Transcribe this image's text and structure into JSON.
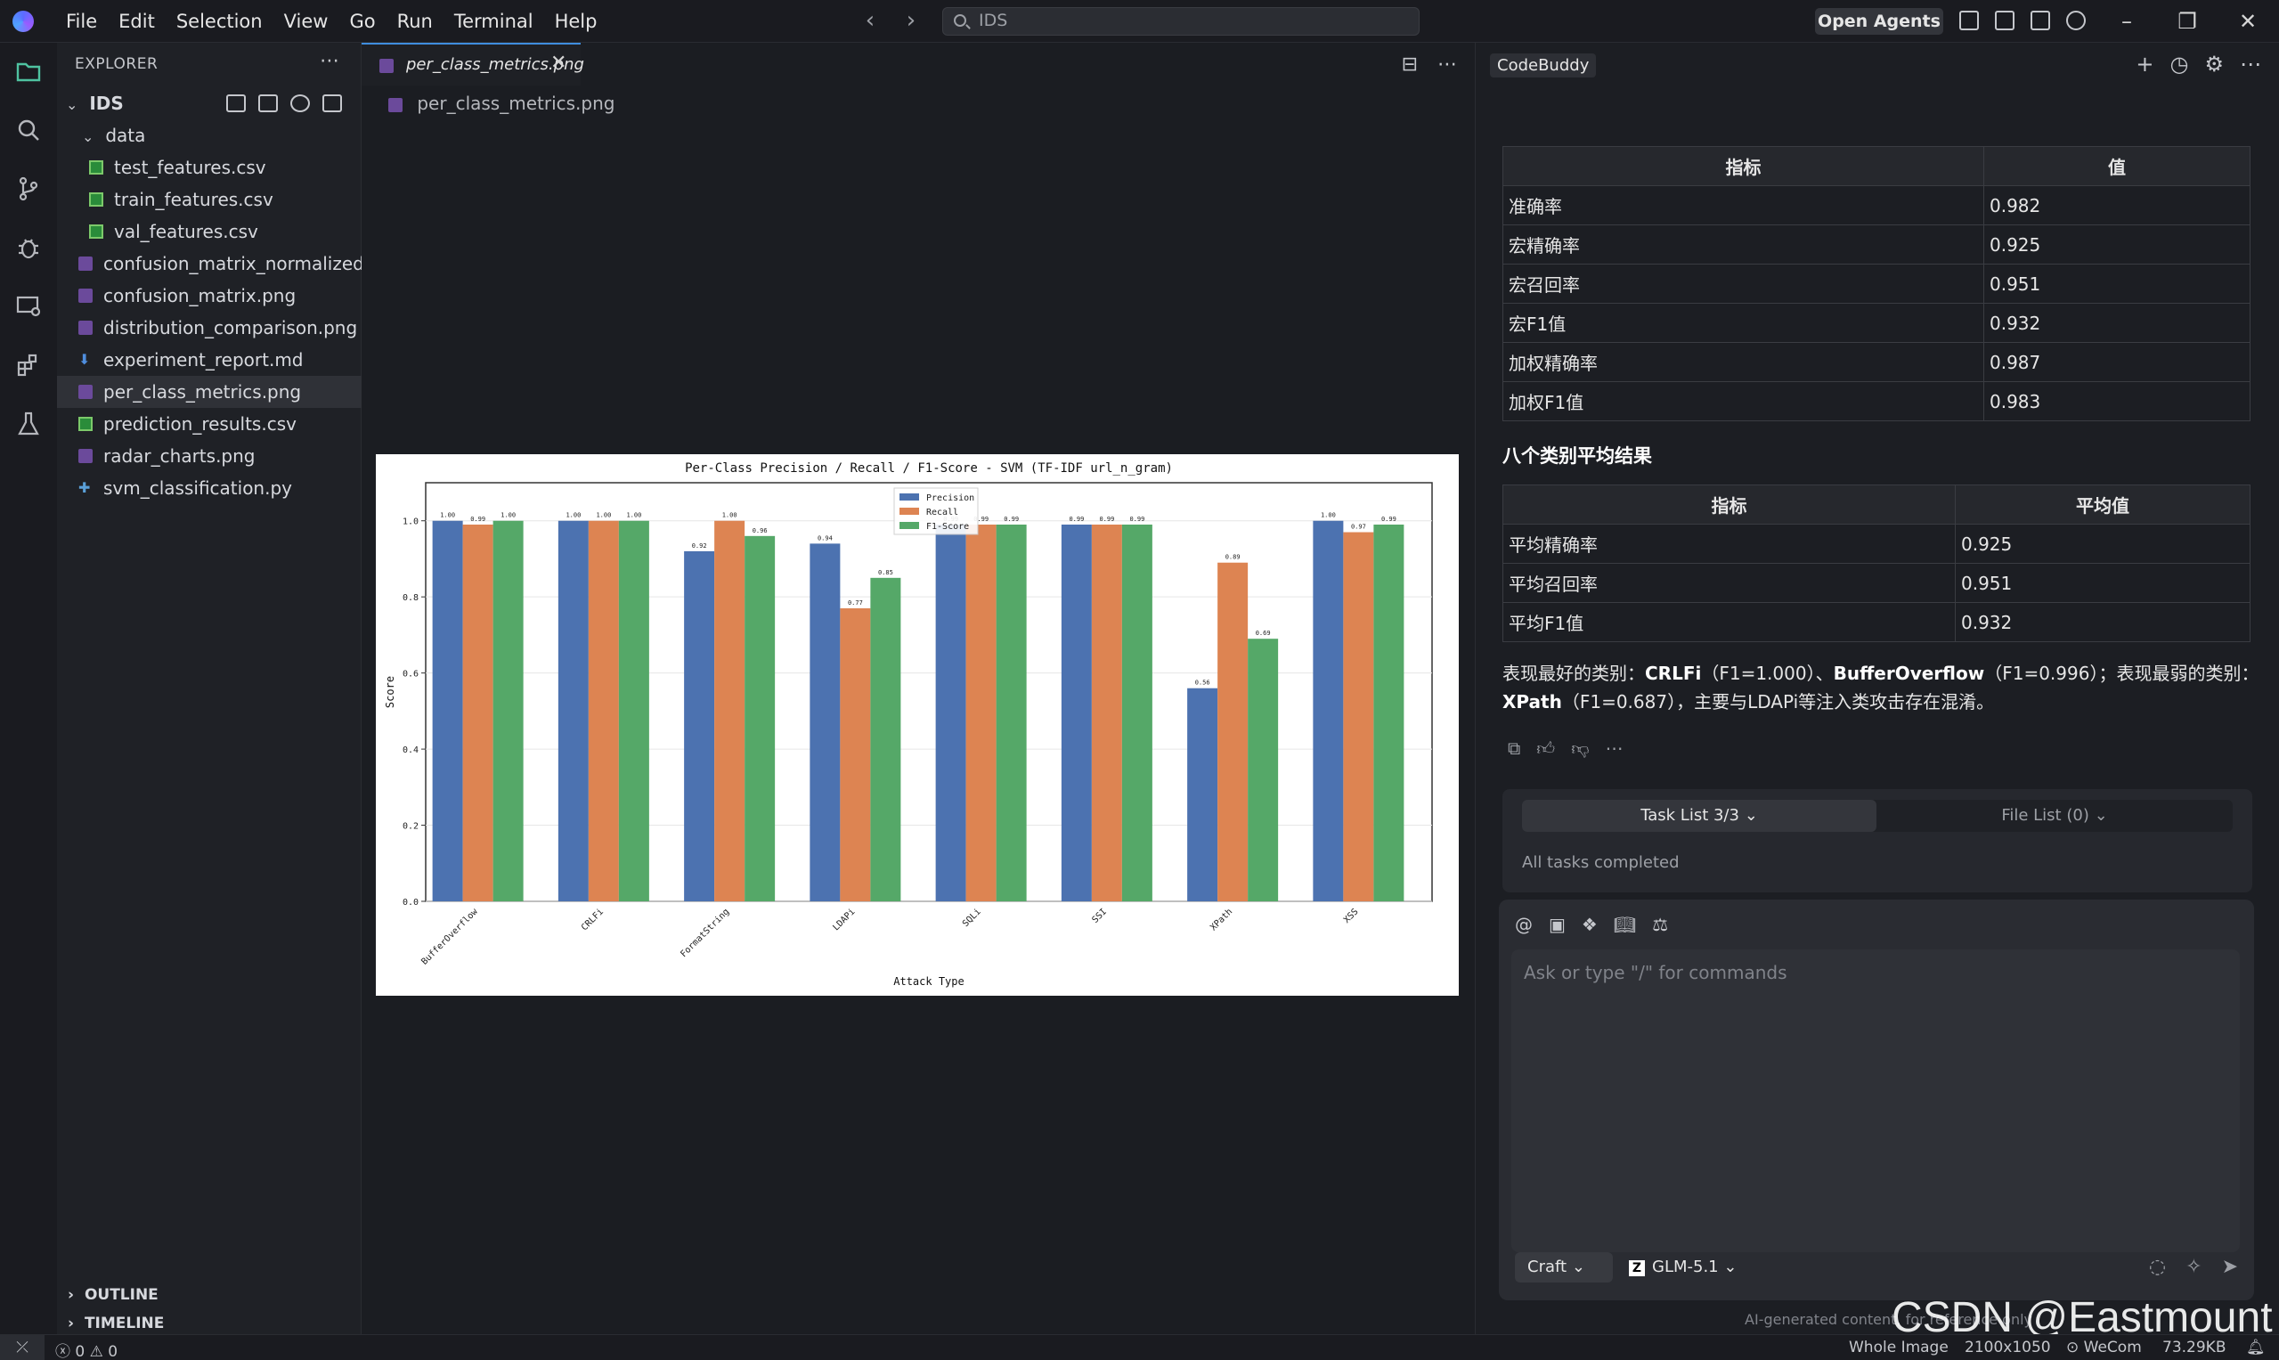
{
  "menu": [
    "File",
    "Edit",
    "Selection",
    "View",
    "Go",
    "Run",
    "Terminal",
    "Help"
  ],
  "search": {
    "value": "IDS"
  },
  "titlebar": {
    "open_agents": "Open Agents"
  },
  "explorer": {
    "title": "EXPLORER",
    "root": "IDS",
    "folder": "data",
    "files": [
      {
        "name": "test_features.csv",
        "type": "csv",
        "indent": 2
      },
      {
        "name": "train_features.csv",
        "type": "csv",
        "indent": 2
      },
      {
        "name": "val_features.csv",
        "type": "csv",
        "indent": 2
      },
      {
        "name": "confusion_matrix_normalized.png",
        "type": "png",
        "indent": 1
      },
      {
        "name": "confusion_matrix.png",
        "type": "png",
        "indent": 1
      },
      {
        "name": "distribution_comparison.png",
        "type": "png",
        "indent": 1
      },
      {
        "name": "experiment_report.md",
        "type": "md",
        "indent": 1
      },
      {
        "name": "per_class_metrics.png",
        "type": "png",
        "indent": 1,
        "selected": true
      },
      {
        "name": "prediction_results.csv",
        "type": "csv",
        "indent": 1
      },
      {
        "name": "radar_charts.png",
        "type": "png",
        "indent": 1
      },
      {
        "name": "svm_classification.py",
        "type": "py",
        "indent": 1
      }
    ],
    "outline": "OUTLINE",
    "timeline": "TIMELINE"
  },
  "editor": {
    "tab_label": "per_class_metrics.png",
    "breadcrumb": "per_class_metrics.png"
  },
  "chart_data": {
    "type": "bar",
    "title": "Per-Class Precision / Recall / F1-Score - SVM (TF-IDF url_n_gram)",
    "xlabel": "Attack Type",
    "ylabel": "Score",
    "ylim": [
      0,
      1.1
    ],
    "yticks": [
      "0.0",
      "0.2",
      "0.4",
      "0.6",
      "0.8",
      "1.0"
    ],
    "categories": [
      "BufferOverflow",
      "CRLFi",
      "FormatString",
      "LDAPi",
      "SQLi",
      "SSI",
      "XPath",
      "XSS"
    ],
    "series": [
      {
        "name": "Precision",
        "color": "#4c72b0",
        "values": [
          1.0,
          1.0,
          0.92,
          0.94,
          0.99,
          0.99,
          0.56,
          1.0
        ]
      },
      {
        "name": "Recall",
        "color": "#dd8452",
        "values": [
          0.99,
          1.0,
          1.0,
          0.77,
          0.99,
          0.99,
          0.89,
          0.97
        ]
      },
      {
        "name": "F1-Score",
        "color": "#55a868",
        "values": [
          1.0,
          1.0,
          0.96,
          0.85,
          0.99,
          0.99,
          0.69,
          0.99
        ]
      }
    ],
    "legend_position": "top-center",
    "grid": true
  },
  "panel": {
    "title": "CodeBuddy",
    "table1": {
      "headers": [
        "指标",
        "值"
      ],
      "rows": [
        [
          "准确率",
          "0.982"
        ],
        [
          "宏精确率",
          "0.925"
        ],
        [
          "宏召回率",
          "0.951"
        ],
        [
          "宏F1值",
          "0.932"
        ],
        [
          "加权精确率",
          "0.987"
        ],
        [
          "加权F1值",
          "0.983"
        ]
      ]
    },
    "section_title": "八个类别平均结果",
    "table2": {
      "headers": [
        "指标",
        "平均值"
      ],
      "rows": [
        [
          "平均精确率",
          "0.925"
        ],
        [
          "平均召回率",
          "0.951"
        ],
        [
          "平均F1值",
          "0.932"
        ]
      ]
    },
    "summary": {
      "p1": "表现最好的类别：",
      "best1": "CRLFi",
      "best1_val": "（F1=1.000）、",
      "best2": "BufferOverflow",
      "best2_val": "（F1=0.996）；表现最弱的类别：",
      "worst": "XPath",
      "worst_val": "（F1=0.687），主要与LDAPi等注入类攻击存在混淆。"
    },
    "task_tab": "Task List 3/3",
    "file_tab": "File List (0)",
    "task_status": "All tasks completed",
    "prompt_placeholder": "Ask or type \"/\" for commands",
    "mode": "Craft",
    "model": "GLM-5.1",
    "ai_note": "AI-generated content, for reference only"
  },
  "watermark": "CSDN @Eastmount",
  "statusbar": {
    "errors": "0",
    "warnings": "0",
    "view_mode": "Whole Image",
    "dimensions": "2100x1050",
    "wecom": "WeCom",
    "size": "73.29KB"
  }
}
